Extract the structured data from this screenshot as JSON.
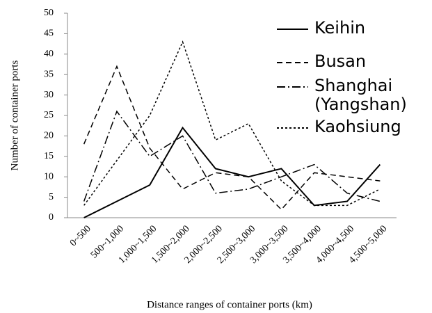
{
  "chart_data": {
    "type": "line",
    "x_label": "Distance ranges of container ports (km)",
    "y_label": "Number of container ports",
    "categories": [
      "0~500",
      "500~1,000",
      "1,000~1,500",
      "1,500~2,000",
      "2,000~2,500",
      "2,500~3,000",
      "3,000~3,500",
      "3,500~4,000",
      "4,000~4,500",
      "4,500~5,000"
    ],
    "series": [
      {
        "name": "Keihin",
        "color": "#000000",
        "dash": "none",
        "values": [
          0,
          4,
          8,
          22,
          12,
          10,
          12,
          3,
          4,
          13
        ]
      },
      {
        "name": "Busan",
        "color": "#000000",
        "dash": "8 5",
        "values": [
          18,
          37,
          17,
          7,
          11,
          10,
          2,
          11,
          10,
          9
        ]
      },
      {
        "name": "Shanghai (Yangshan)",
        "color": "#000000",
        "dash": "12 4 2 4",
        "values": [
          4,
          26,
          15,
          20,
          6,
          7,
          10,
          13,
          6,
          4
        ]
      },
      {
        "name": "Kaohsiung",
        "color": "#000000",
        "dash": "3 3",
        "values": [
          3,
          14,
          25,
          43,
          19,
          23,
          9,
          3,
          3,
          7
        ]
      }
    ],
    "ylim": [
      0,
      50
    ],
    "yticks": [
      0,
      5,
      10,
      15,
      20,
      25,
      30,
      35,
      40,
      45,
      50
    ],
    "grid": false
  }
}
